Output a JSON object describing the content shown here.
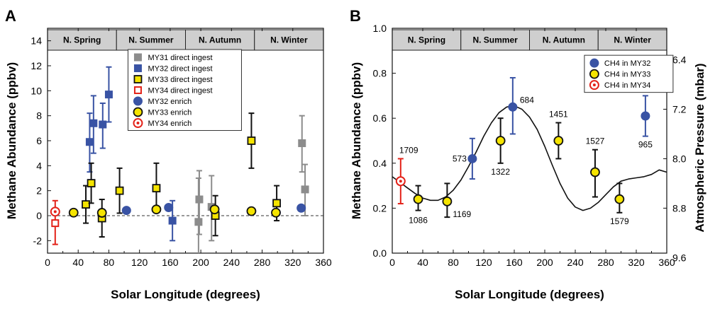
{
  "chart_data": [
    {
      "type": "scatter",
      "panel_label": "A",
      "xlabel": "Solar Longitude (degrees)",
      "ylabel": "Methane Abundance (ppbv)",
      "xlim": [
        0,
        360
      ],
      "ylim": [
        -3,
        15
      ],
      "xticks": [
        0,
        40,
        80,
        120,
        160,
        200,
        240,
        280,
        320,
        360
      ],
      "yticks": [
        -2,
        0,
        2,
        4,
        6,
        8,
        10,
        12,
        14
      ],
      "reference_line_y": 0,
      "seasons": [
        {
          "label": "N. Spring",
          "start": 0,
          "end": 90
        },
        {
          "label": "N. Summer",
          "start": 90,
          "end": 180
        },
        {
          "label": "N. Autumn",
          "start": 180,
          "end": 270
        },
        {
          "label": "N. Winter",
          "start": 270,
          "end": 360
        }
      ],
      "legend_position": "top-center",
      "colors": {
        "grey": "#8c8c8c",
        "blue": "#3953a4",
        "yellow": "#f5e400",
        "red": "#e32219",
        "black": "#111111"
      },
      "series": [
        {
          "name": "MY31 direct ingest",
          "marker": "square",
          "color": "#8c8c8c",
          "points": [
            {
              "x": 197,
              "y": -0.5,
              "low": -4.0,
              "high": 3.0
            },
            {
              "x": 198,
              "y": 1.3,
              "low": -1.5,
              "high": 3.6
            },
            {
              "x": 214,
              "y": 0.7,
              "low": -2.0,
              "high": 3.2
            },
            {
              "x": 332,
              "y": 5.8,
              "low": 3.5,
              "high": 8.0
            },
            {
              "x": 336,
              "y": 2.1,
              "low": 0.0,
              "high": 4.1
            }
          ]
        },
        {
          "name": "MY32 direct ingest",
          "marker": "square",
          "color": "#3953a4",
          "points": [
            {
              "x": 55,
              "y": 5.9,
              "low": 3.5,
              "high": 8.2
            },
            {
              "x": 60,
              "y": 7.4,
              "low": 5.0,
              "high": 9.6
            },
            {
              "x": 72,
              "y": 7.3,
              "low": 5.4,
              "high": 9.0
            },
            {
              "x": 80,
              "y": 9.7,
              "low": 7.5,
              "high": 11.9
            },
            {
              "x": 163,
              "y": -0.4,
              "low": -2.0,
              "high": 1.2
            }
          ]
        },
        {
          "name": "MY33 direct ingest",
          "marker": "square",
          "color": "#f5e400",
          "points": [
            {
              "x": 50,
              "y": 0.9,
              "low": -0.6,
              "high": 2.4
            },
            {
              "x": 57,
              "y": 2.6,
              "low": 1.0,
              "high": 4.2
            },
            {
              "x": 71,
              "y": -0.2,
              "low": -1.7,
              "high": 1.3
            },
            {
              "x": 94,
              "y": 2.0,
              "low": 0.2,
              "high": 3.8
            },
            {
              "x": 142,
              "y": 2.2,
              "low": 0.4,
              "high": 4.2
            },
            {
              "x": 219,
              "y": 0.0,
              "low": -1.6,
              "high": 1.6
            },
            {
              "x": 266,
              "y": 6.0,
              "low": 3.8,
              "high": 8.2
            },
            {
              "x": 299,
              "y": 1.0,
              "low": -0.4,
              "high": 2.4
            }
          ]
        },
        {
          "name": "MY34 direct ingest",
          "marker": "open-square",
          "color": "#e32219",
          "points": [
            {
              "x": 10,
              "y": -0.6,
              "low": -2.3,
              "high": 1.2
            }
          ]
        },
        {
          "name": "MY32 enrich",
          "marker": "circle",
          "color": "#3953a4",
          "points": [
            {
              "x": 103,
              "y": 0.42,
              "low": 0.33,
              "high": 0.51
            },
            {
              "x": 158,
              "y": 0.65,
              "low": 0.53,
              "high": 0.78
            },
            {
              "x": 331,
              "y": 0.61,
              "low": 0.52,
              "high": 0.7
            }
          ]
        },
        {
          "name": "MY33 enrich",
          "marker": "circle",
          "color": "#f5e400",
          "points": [
            {
              "x": 34,
              "y": 0.24,
              "low": 0.19,
              "high": 0.3
            },
            {
              "x": 71,
              "y": 0.23,
              "low": 0.16,
              "high": 0.31
            },
            {
              "x": 142,
              "y": 0.5,
              "low": 0.4,
              "high": 0.6
            },
            {
              "x": 218,
              "y": 0.5,
              "low": 0.42,
              "high": 0.58
            },
            {
              "x": 266,
              "y": 0.36,
              "low": 0.25,
              "high": 0.46
            },
            {
              "x": 298,
              "y": 0.24,
              "low": 0.18,
              "high": 0.31
            }
          ]
        },
        {
          "name": "MY34 enrich",
          "marker": "open-circle",
          "color": "#e32219",
          "points": [
            {
              "x": 10,
              "y": 0.32,
              "low": 0.22,
              "high": 0.42
            }
          ]
        }
      ]
    },
    {
      "type": "scatter",
      "panel_label": "B",
      "xlabel": "Solar Longitude (degrees)",
      "ylabel": "Methane Abundance (ppbv)",
      "y2label": "Atmospheric Pressure (mbar)",
      "xlim": [
        0,
        360
      ],
      "ylim": [
        0.0,
        1.0
      ],
      "xticks": [
        0,
        40,
        80,
        120,
        160,
        200,
        240,
        280,
        320,
        360
      ],
      "yticks": [
        "0.0",
        "0.2",
        "0.4",
        "0.6",
        "0.8",
        "1.0"
      ],
      "y2ticks": [
        {
          "label": "6.4",
          "y": 0.86
        },
        {
          "label": "7.2",
          "y": 0.64
        },
        {
          "label": "8.0",
          "y": 0.42
        },
        {
          "label": "8.8",
          "y": 0.2
        },
        {
          "label": "9.6",
          "y": -0.02
        }
      ],
      "seasons": [
        {
          "label": "N. Spring",
          "start": 0,
          "end": 90
        },
        {
          "label": "N. Summer",
          "start": 90,
          "end": 180
        },
        {
          "label": "N. Autumn",
          "start": 180,
          "end": 270
        },
        {
          "label": "N. Winter",
          "start": 270,
          "end": 360
        }
      ],
      "legend_position": "top-right",
      "pressure_curve": {
        "x": [
          0,
          10,
          20,
          30,
          40,
          50,
          60,
          70,
          80,
          90,
          100,
          110,
          120,
          130,
          140,
          150,
          160,
          170,
          180,
          190,
          200,
          210,
          220,
          230,
          240,
          250,
          260,
          270,
          280,
          290,
          300,
          310,
          320,
          330,
          340,
          350,
          360
        ],
        "y": [
          0.34,
          0.315,
          0.29,
          0.265,
          0.245,
          0.235,
          0.235,
          0.25,
          0.28,
          0.325,
          0.385,
          0.45,
          0.52,
          0.58,
          0.625,
          0.65,
          0.655,
          0.64,
          0.605,
          0.55,
          0.475,
          0.39,
          0.31,
          0.245,
          0.205,
          0.19,
          0.2,
          0.225,
          0.26,
          0.295,
          0.32,
          0.33,
          0.335,
          0.34,
          0.35,
          0.37,
          0.36
        ]
      },
      "series": [
        {
          "name": "CH4 in MY32",
          "marker": "circle",
          "color": "#3953a4",
          "points": [
            {
              "x": 105,
              "y": 0.42,
              "low": 0.33,
              "high": 0.51,
              "label": "573"
            },
            {
              "x": 158,
              "y": 0.65,
              "low": 0.53,
              "high": 0.78,
              "label": "684"
            },
            {
              "x": 332,
              "y": 0.61,
              "low": 0.52,
              "high": 0.7,
              "label": "965"
            }
          ]
        },
        {
          "name": "CH4 in MY33",
          "marker": "circle",
          "color": "#f5e400",
          "points": [
            {
              "x": 34,
              "y": 0.24,
              "low": 0.19,
              "high": 0.3,
              "label": "1086"
            },
            {
              "x": 72,
              "y": 0.23,
              "low": 0.16,
              "high": 0.31,
              "label": "1169"
            },
            {
              "x": 142,
              "y": 0.5,
              "low": 0.4,
              "high": 0.6,
              "label": "1322"
            },
            {
              "x": 218,
              "y": 0.5,
              "low": 0.42,
              "high": 0.58,
              "label": "1451"
            },
            {
              "x": 266,
              "y": 0.36,
              "low": 0.25,
              "high": 0.46,
              "label": "1527"
            },
            {
              "x": 298,
              "y": 0.24,
              "low": 0.18,
              "high": 0.31,
              "label": "1579"
            }
          ]
        },
        {
          "name": "CH4 in MY34",
          "marker": "open-circle",
          "color": "#e32219",
          "points": [
            {
              "x": 11,
              "y": 0.32,
              "low": 0.22,
              "high": 0.42,
              "label": "1709"
            }
          ]
        }
      ]
    }
  ]
}
